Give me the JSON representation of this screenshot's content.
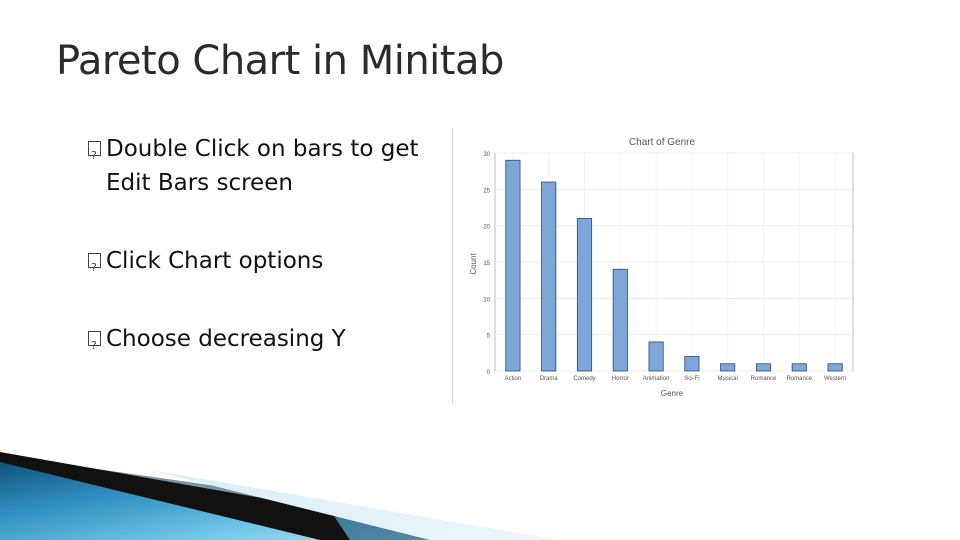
{
  "slide": {
    "title": "Pareto Chart in Minitab",
    "bullets": [
      "Double Click on bars to get Edit Bars screen",
      "Click Chart options",
      "Choose decreasing Y"
    ]
  },
  "chart_data": {
    "type": "bar",
    "title": "Chart of Genre",
    "xlabel": "Genre",
    "ylabel": "Count",
    "categories": [
      "Action",
      "Drama",
      "Comedy",
      "Horror",
      "Animation",
      "Sci-Fi",
      "Musical",
      "Romance",
      "Romance",
      "Western"
    ],
    "values": [
      29,
      26,
      21,
      14,
      4,
      2,
      1,
      1,
      1,
      1
    ],
    "ylim": [
      0,
      30
    ],
    "yticks": [
      "0",
      "5",
      "10",
      "15",
      "20",
      "25",
      "30"
    ],
    "grid": true,
    "bar_color": "#7fa6d9",
    "bar_edge_color": "#2f4a73"
  },
  "theme": {
    "accent_dark": "#0d4f77",
    "accent_light": "#4fb5dc"
  }
}
